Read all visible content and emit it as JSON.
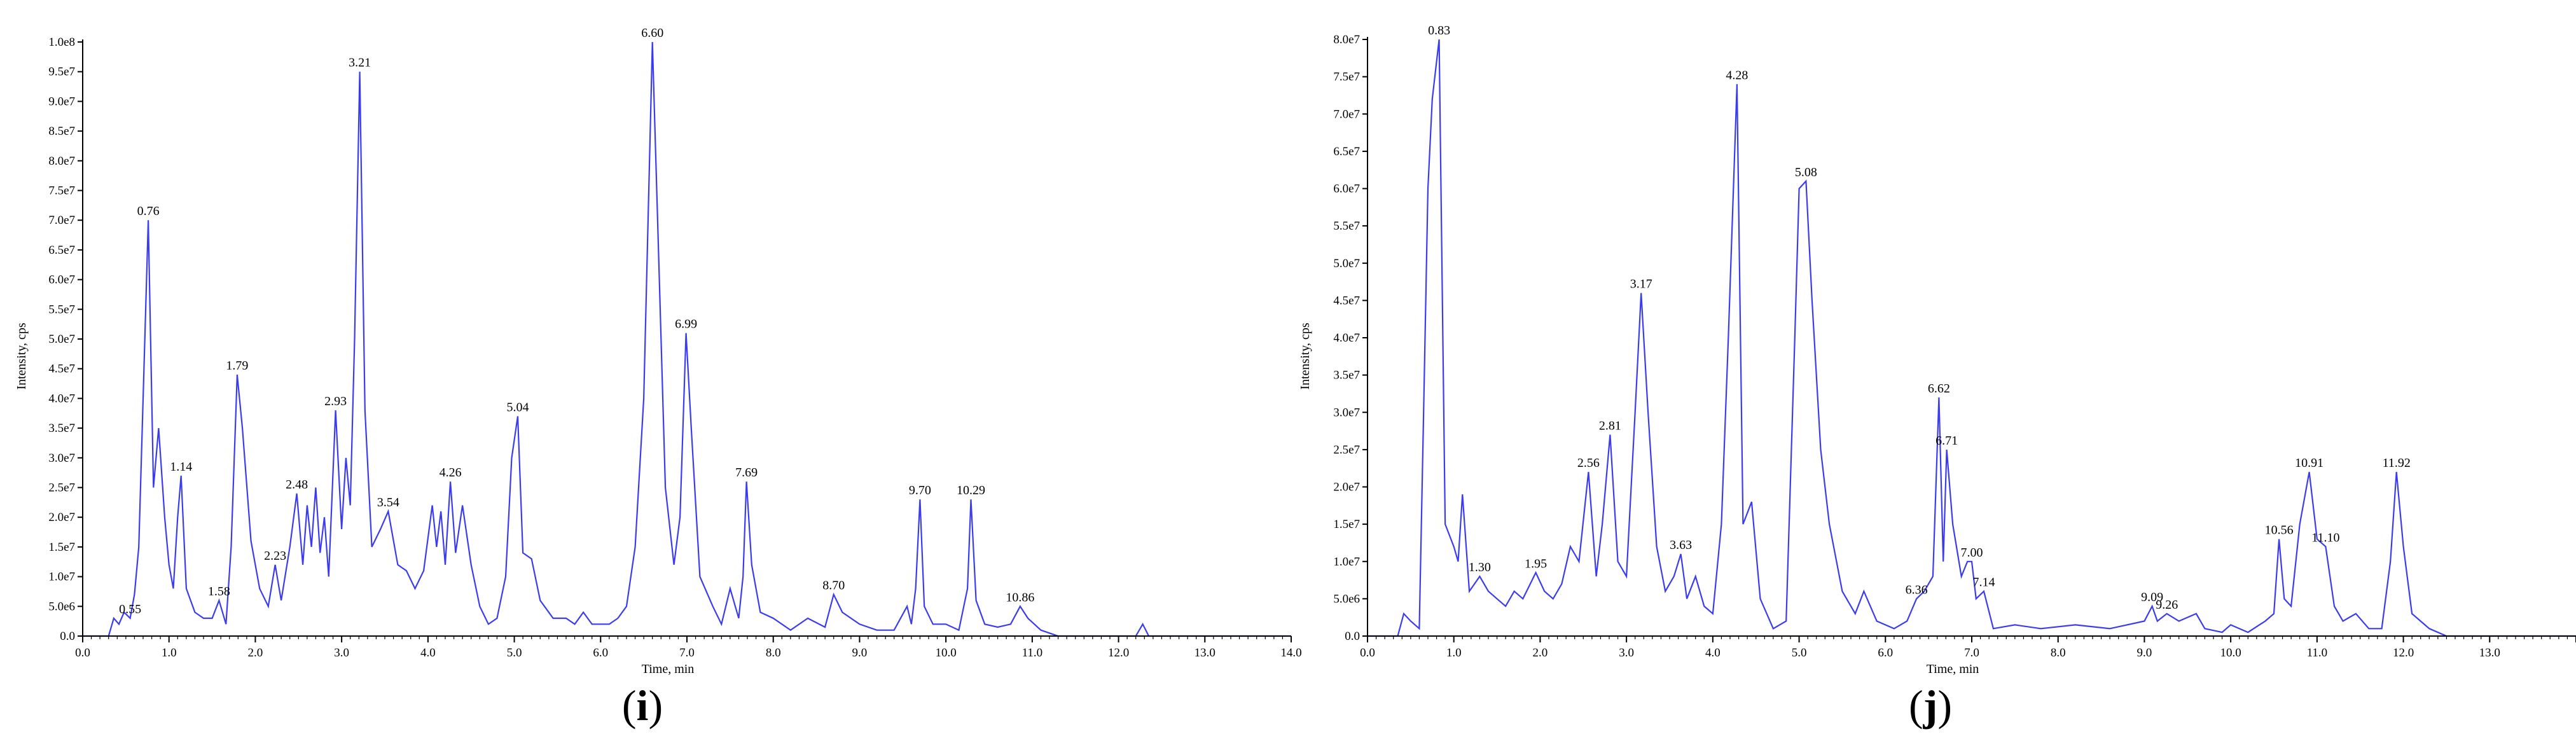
{
  "chart_data": [
    {
      "type": "line",
      "panel_label": "i",
      "xlabel": "Time, min",
      "ylabel": "Intensity, cps",
      "xlim": [
        0,
        14
      ],
      "ylim": [
        0,
        100000000
      ],
      "x_ticks": [
        "0.0",
        "1.0",
        "2.0",
        "3.0",
        "4.0",
        "5.0",
        "6.0",
        "7.0",
        "8.0",
        "9.0",
        "10.0",
        "11.0",
        "12.0",
        "13.0",
        "14.0"
      ],
      "y_ticks": [
        "0.0",
        "5.0e6",
        "1.0e7",
        "1.5e7",
        "2.0e7",
        "2.5e7",
        "3.0e7",
        "3.5e7",
        "4.0e7",
        "4.5e7",
        "5.0e7",
        "5.5e7",
        "6.0e7",
        "6.5e7",
        "7.0e7",
        "7.5e7",
        "8.0e7",
        "8.5e7",
        "9.0e7",
        "9.5e7",
        "1.0e8"
      ],
      "color": "#3b3bef",
      "peak_labels": [
        {
          "x": 0.55,
          "y": 3000000,
          "label": "0.55"
        },
        {
          "x": 0.76,
          "y": 70000000,
          "label": "0.76"
        },
        {
          "x": 1.14,
          "y": 27000000,
          "label": "1.14"
        },
        {
          "x": 1.58,
          "y": 6000000,
          "label": "1.58"
        },
        {
          "x": 1.79,
          "y": 44000000,
          "label": "1.79"
        },
        {
          "x": 2.23,
          "y": 12000000,
          "label": "2.23"
        },
        {
          "x": 2.48,
          "y": 24000000,
          "label": "2.48"
        },
        {
          "x": 2.93,
          "y": 38000000,
          "label": "2.93"
        },
        {
          "x": 3.21,
          "y": 95000000,
          "label": "3.21"
        },
        {
          "x": 3.54,
          "y": 21000000,
          "label": "3.54"
        },
        {
          "x": 4.26,
          "y": 26000000,
          "label": "4.26"
        },
        {
          "x": 5.04,
          "y": 37000000,
          "label": "5.04"
        },
        {
          "x": 6.6,
          "y": 100000000,
          "label": "6.60"
        },
        {
          "x": 6.99,
          "y": 51000000,
          "label": "6.99"
        },
        {
          "x": 7.69,
          "y": 26000000,
          "label": "7.69"
        },
        {
          "x": 8.7,
          "y": 7000000,
          "label": "8.70"
        },
        {
          "x": 9.7,
          "y": 23000000,
          "label": "9.70"
        },
        {
          "x": 10.29,
          "y": 23000000,
          "label": "10.29"
        },
        {
          "x": 10.86,
          "y": 5000000,
          "label": "10.86"
        }
      ],
      "x": [
        0.0,
        0.3,
        0.36,
        0.42,
        0.48,
        0.55,
        0.6,
        0.65,
        0.7,
        0.76,
        0.82,
        0.88,
        0.95,
        1.0,
        1.05,
        1.1,
        1.14,
        1.2,
        1.3,
        1.4,
        1.5,
        1.58,
        1.66,
        1.72,
        1.79,
        1.85,
        1.95,
        2.05,
        2.15,
        2.23,
        2.3,
        2.4,
        2.48,
        2.55,
        2.6,
        2.65,
        2.7,
        2.75,
        2.8,
        2.85,
        2.93,
        3.0,
        3.05,
        3.1,
        3.15,
        3.21,
        3.27,
        3.35,
        3.45,
        3.54,
        3.65,
        3.75,
        3.85,
        3.95,
        4.05,
        4.1,
        4.15,
        4.2,
        4.26,
        4.32,
        4.4,
        4.5,
        4.6,
        4.7,
        4.8,
        4.9,
        4.97,
        5.04,
        5.1,
        5.2,
        5.3,
        5.45,
        5.6,
        5.7,
        5.8,
        5.9,
        6.0,
        6.1,
        6.2,
        6.3,
        6.4,
        6.5,
        6.55,
        6.6,
        6.66,
        6.75,
        6.85,
        6.92,
        6.99,
        7.05,
        7.15,
        7.3,
        7.4,
        7.5,
        7.6,
        7.65,
        7.69,
        7.75,
        7.85,
        8.0,
        8.2,
        8.4,
        8.6,
        8.7,
        8.8,
        9.0,
        9.2,
        9.4,
        9.55,
        9.6,
        9.65,
        9.7,
        9.75,
        9.85,
        10.0,
        10.15,
        10.25,
        10.29,
        10.35,
        10.45,
        10.6,
        10.75,
        10.86,
        10.95,
        11.1,
        11.3,
        12.2,
        12.28,
        12.35,
        14.0
      ],
      "y": [
        0,
        0,
        3000000,
        2000000,
        4000000,
        3000000,
        7000000,
        15000000,
        40000000,
        70000000,
        25000000,
        35000000,
        20000000,
        12000000,
        8000000,
        20000000,
        27000000,
        8000000,
        4000000,
        3000000,
        3000000,
        6000000,
        2000000,
        15000000,
        44000000,
        35000000,
        16000000,
        8000000,
        5000000,
        12000000,
        6000000,
        15000000,
        24000000,
        12000000,
        22000000,
        15000000,
        25000000,
        14000000,
        20000000,
        10000000,
        38000000,
        18000000,
        30000000,
        22000000,
        50000000,
        95000000,
        38000000,
        15000000,
        18000000,
        21000000,
        12000000,
        11000000,
        8000000,
        11000000,
        22000000,
        15000000,
        21000000,
        12000000,
        26000000,
        14000000,
        22000000,
        12000000,
        5000000,
        2000000,
        3000000,
        10000000,
        30000000,
        37000000,
        14000000,
        13000000,
        6000000,
        3000000,
        3000000,
        2000000,
        4000000,
        2000000,
        2000000,
        2000000,
        3000000,
        5000000,
        15000000,
        40000000,
        70000000,
        100000000,
        70000000,
        25000000,
        12000000,
        20000000,
        51000000,
        35000000,
        10000000,
        5000000,
        2000000,
        8000000,
        3000000,
        10000000,
        26000000,
        12000000,
        4000000,
        3000000,
        1000000,
        3000000,
        1500000,
        7000000,
        4000000,
        2000000,
        1000000,
        1000000,
        5000000,
        2000000,
        8000000,
        23000000,
        5000000,
        2000000,
        2000000,
        1000000,
        8000000,
        23000000,
        6000000,
        2000000,
        1500000,
        2000000,
        5000000,
        3000000,
        1000000,
        0,
        0,
        2000000,
        0,
        0
      ]
    },
    {
      "type": "line",
      "panel_label": "j",
      "xlabel": "Time, min",
      "ylabel": "Intensity, cps",
      "xlim": [
        0,
        14
      ],
      "ylim": [
        0,
        80000000
      ],
      "x_ticks": [
        "0.0",
        "1.0",
        "2.0",
        "3.0",
        "4.0",
        "5.0",
        "6.0",
        "7.0",
        "8.0",
        "9.0",
        "10.0",
        "11.0",
        "12.0",
        "13.0"
      ],
      "y_ticks": [
        "0.0",
        "5.0e6",
        "1.0e7",
        "1.5e7",
        "2.0e7",
        "2.5e7",
        "3.0e7",
        "3.5e7",
        "4.0e7",
        "4.5e7",
        "5.0e7",
        "5.5e7",
        "6.0e7",
        "6.5e7",
        "7.0e7",
        "7.5e7",
        "8.0e7"
      ],
      "color": "#3b3bef",
      "peak_labels": [
        {
          "x": 0.83,
          "y": 80000000,
          "label": "0.83"
        },
        {
          "x": 1.3,
          "y": 8000000,
          "label": "1.30"
        },
        {
          "x": 1.95,
          "y": 8500000,
          "label": "1.95"
        },
        {
          "x": 2.56,
          "y": 22000000,
          "label": "2.56"
        },
        {
          "x": 2.81,
          "y": 27000000,
          "label": "2.81"
        },
        {
          "x": 3.17,
          "y": 46000000,
          "label": "3.17"
        },
        {
          "x": 3.63,
          "y": 11000000,
          "label": "3.63"
        },
        {
          "x": 4.28,
          "y": 74000000,
          "label": "4.28"
        },
        {
          "x": 5.08,
          "y": 61000000,
          "label": "5.08"
        },
        {
          "x": 6.36,
          "y": 5000000,
          "label": "6.36"
        },
        {
          "x": 6.62,
          "y": 32000000,
          "label": "6.62"
        },
        {
          "x": 6.71,
          "y": 25000000,
          "label": "6.71"
        },
        {
          "x": 7.0,
          "y": 10000000,
          "label": "7.00"
        },
        {
          "x": 7.14,
          "y": 6000000,
          "label": "7.14"
        },
        {
          "x": 9.09,
          "y": 4000000,
          "label": "9.09"
        },
        {
          "x": 9.26,
          "y": 3000000,
          "label": "9.26"
        },
        {
          "x": 10.56,
          "y": 13000000,
          "label": "10.56"
        },
        {
          "x": 10.91,
          "y": 22000000,
          "label": "10.91"
        },
        {
          "x": 11.1,
          "y": 12000000,
          "label": "11.10"
        },
        {
          "x": 11.92,
          "y": 22000000,
          "label": "11.92"
        }
      ],
      "x": [
        0.0,
        0.35,
        0.42,
        0.5,
        0.6,
        0.65,
        0.7,
        0.75,
        0.83,
        0.9,
        1.0,
        1.05,
        1.1,
        1.18,
        1.3,
        1.4,
        1.5,
        1.6,
        1.7,
        1.8,
        1.95,
        2.05,
        2.15,
        2.25,
        2.35,
        2.45,
        2.56,
        2.65,
        2.72,
        2.81,
        2.9,
        3.0,
        3.1,
        3.17,
        3.25,
        3.35,
        3.45,
        3.55,
        3.63,
        3.7,
        3.8,
        3.9,
        4.0,
        4.1,
        4.18,
        4.28,
        4.35,
        4.45,
        4.55,
        4.7,
        4.85,
        4.95,
        5.0,
        5.08,
        5.15,
        5.25,
        5.35,
        5.5,
        5.65,
        5.75,
        5.9,
        6.1,
        6.25,
        6.36,
        6.45,
        6.55,
        6.62,
        6.67,
        6.71,
        6.78,
        6.88,
        6.95,
        7.0,
        7.05,
        7.14,
        7.25,
        7.5,
        7.8,
        8.2,
        8.6,
        9.0,
        9.09,
        9.15,
        9.26,
        9.4,
        9.6,
        9.7,
        9.9,
        10.0,
        10.2,
        10.4,
        10.5,
        10.56,
        10.62,
        10.7,
        10.8,
        10.91,
        11.0,
        11.1,
        11.2,
        11.3,
        11.45,
        11.6,
        11.75,
        11.85,
        11.92,
        12.0,
        12.1,
        12.3,
        12.5,
        14.0
      ],
      "y": [
        0,
        0,
        3000000,
        2000000,
        1000000,
        30000000,
        60000000,
        72000000,
        80000000,
        15000000,
        12000000,
        10000000,
        19000000,
        6000000,
        8000000,
        6000000,
        5000000,
        4000000,
        6000000,
        5000000,
        8500000,
        6000000,
        5000000,
        7000000,
        12000000,
        10000000,
        22000000,
        8000000,
        15000000,
        27000000,
        10000000,
        8000000,
        30000000,
        46000000,
        30000000,
        12000000,
        6000000,
        8000000,
        11000000,
        5000000,
        8000000,
        4000000,
        3000000,
        15000000,
        40000000,
        74000000,
        15000000,
        18000000,
        5000000,
        1000000,
        2000000,
        40000000,
        60000000,
        61000000,
        45000000,
        25000000,
        15000000,
        6000000,
        3000000,
        6000000,
        2000000,
        1000000,
        2000000,
        5000000,
        6000000,
        8000000,
        32000000,
        10000000,
        25000000,
        15000000,
        8000000,
        10000000,
        10000000,
        5000000,
        6000000,
        1000000,
        1500000,
        1000000,
        1500000,
        1000000,
        2000000,
        4000000,
        2000000,
        3000000,
        2000000,
        3000000,
        1000000,
        500000,
        1500000,
        500000,
        2000000,
        3000000,
        13000000,
        5000000,
        4000000,
        15000000,
        22000000,
        13000000,
        12000000,
        4000000,
        2000000,
        3000000,
        1000000,
        1000000,
        10000000,
        22000000,
        12000000,
        3000000,
        1000000,
        0,
        0
      ]
    }
  ]
}
